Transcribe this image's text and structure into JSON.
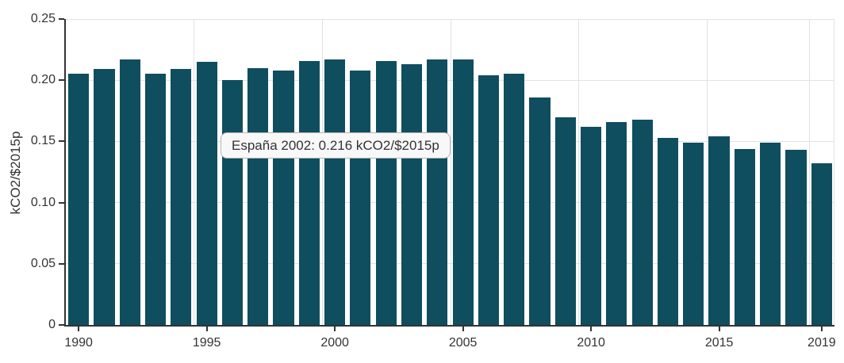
{
  "chart_data": {
    "type": "bar",
    "series_name": "España",
    "unit": "kCO2/$2015p",
    "ylabel": "kCO2/$2015p",
    "ylim": [
      0,
      0.25
    ],
    "grid": true,
    "legend": false,
    "bar_color": "#0f4e5f",
    "x": [
      1990,
      1991,
      1992,
      1993,
      1994,
      1995,
      1996,
      1997,
      1998,
      1999,
      2000,
      2001,
      2002,
      2003,
      2004,
      2005,
      2006,
      2007,
      2008,
      2009,
      2010,
      2011,
      2012,
      2013,
      2014,
      2015,
      2016,
      2017,
      2018,
      2019
    ],
    "values": [
      0.205,
      0.209,
      0.217,
      0.205,
      0.209,
      0.215,
      0.2,
      0.21,
      0.208,
      0.216,
      0.217,
      0.208,
      0.216,
      0.213,
      0.217,
      0.217,
      0.204,
      0.205,
      0.186,
      0.17,
      0.162,
      0.166,
      0.168,
      0.153,
      0.149,
      0.154,
      0.144,
      0.149,
      0.143,
      0.132
    ],
    "yticks": [
      0,
      0.05,
      0.1,
      0.15,
      0.2,
      0.25
    ],
    "ytick_labels": [
      "0",
      "0.05",
      "0.10",
      "0.15",
      "0.20",
      "0.25"
    ],
    "xtick_indices": [
      0,
      5,
      10,
      15,
      20,
      25,
      29
    ],
    "xtick_labels": [
      "1990",
      "1995",
      "2000",
      "2005",
      "2010",
      "2015",
      "2019"
    ]
  },
  "tooltip": {
    "text": "España 2002: 0.216 kCO2/$2015p"
  },
  "colors": {
    "bar": "#0f4e5f",
    "axis": "#333333",
    "gridline": "#e2e2e2",
    "text": "#333333",
    "tooltip_bg": "#f8f8f8",
    "tooltip_border": "#b5b5b5"
  }
}
